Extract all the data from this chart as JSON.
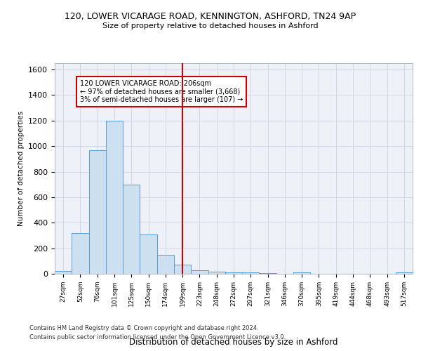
{
  "title_line1": "120, LOWER VICARAGE ROAD, KENNINGTON, ASHFORD, TN24 9AP",
  "title_line2": "Size of property relative to detached houses in Ashford",
  "xlabel": "Distribution of detached houses by size in Ashford",
  "ylabel": "Number of detached properties",
  "footnote1": "Contains HM Land Registry data © Crown copyright and database right 2024.",
  "footnote2": "Contains public sector information licensed under the Open Government Licence v3.0.",
  "bar_color": "#cce0f0",
  "bar_edge_color": "#5b9bd5",
  "annotation_box_color": "#cc0000",
  "vline_color": "#cc0000",
  "bg_color": "#eef2f8",
  "categories": [
    "27sqm",
    "52sqm",
    "76sqm",
    "101sqm",
    "125sqm",
    "150sqm",
    "174sqm",
    "199sqm",
    "223sqm",
    "248sqm",
    "272sqm",
    "297sqm",
    "321sqm",
    "346sqm",
    "370sqm",
    "395sqm",
    "419sqm",
    "444sqm",
    "468sqm",
    "493sqm",
    "517sqm"
  ],
  "values": [
    20,
    320,
    970,
    1200,
    700,
    310,
    150,
    70,
    25,
    15,
    10,
    10,
    5,
    0,
    10,
    0,
    0,
    0,
    0,
    0,
    10
  ],
  "ylim": [
    0,
    1650
  ],
  "yticks": [
    0,
    200,
    400,
    600,
    800,
    1000,
    1200,
    1400,
    1600
  ],
  "property_bin_index": 7,
  "annotation_text_line1": "120 LOWER VICARAGE ROAD: 206sqm",
  "annotation_text_line2": "← 97% of detached houses are smaller (3,668)",
  "annotation_text_line3": "3% of semi-detached houses are larger (107) →",
  "grid_color": "#d0d8e8"
}
